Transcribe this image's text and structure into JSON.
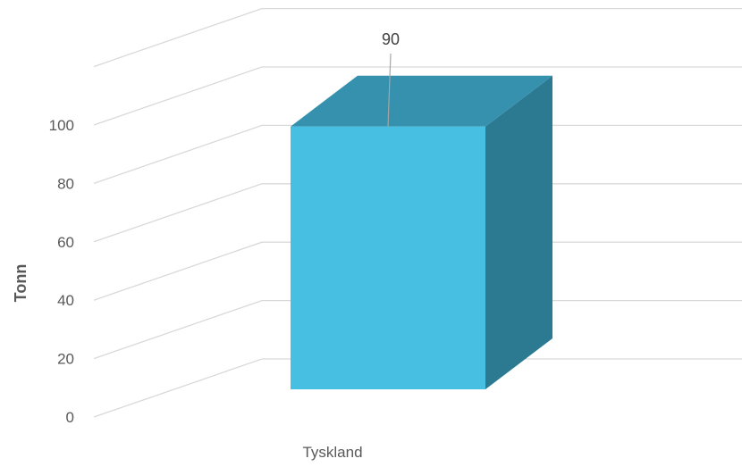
{
  "chart_data": {
    "type": "bar",
    "categories": [
      "Tyskland"
    ],
    "values": [
      90
    ],
    "data_labels": [
      "90"
    ],
    "title": "",
    "xlabel": "",
    "ylabel": "Tonn",
    "ylim": [
      0,
      100
    ],
    "yticks": [
      "0",
      "20",
      "40",
      "60",
      "80",
      "100"
    ],
    "grid": true,
    "legend": "none",
    "colors": {
      "bar_front": "#47BFE2",
      "bar_top": "#3591AE",
      "bar_side": "#2C7A92",
      "grid": "#D9D9D9",
      "text": "#595959"
    }
  }
}
